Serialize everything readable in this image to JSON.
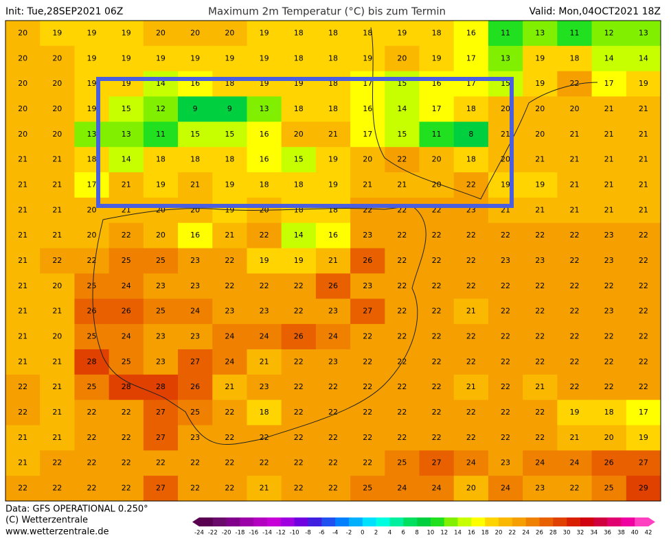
{
  "header": {
    "init": "Init: Tue,28SEP2021 06Z",
    "title": "Maximum 2m Temperatur (°C) bis zum Termin",
    "valid": "Valid: Mon,04OCT2021 18Z"
  },
  "footer": {
    "data": "Data: GFS OPERATIONAL 0.250°",
    "copyright": "(C) Wetterzentrale",
    "url": "www.wetterzentrale.de"
  },
  "map": {
    "rows": [
      [
        20,
        19,
        19,
        19,
        20,
        20,
        20,
        19,
        18,
        18,
        18,
        19,
        18,
        16,
        11,
        13,
        11,
        12,
        13
      ],
      [
        20,
        20,
        19,
        19,
        19,
        19,
        19,
        19,
        18,
        18,
        19,
        20,
        19,
        17,
        13,
        19,
        18,
        14,
        14
      ],
      [
        20,
        20,
        19,
        19,
        14,
        16,
        18,
        19,
        19,
        18,
        17,
        15,
        16,
        17,
        15,
        19,
        22,
        17,
        19
      ],
      [
        20,
        20,
        19,
        15,
        12,
        9,
        9,
        13,
        18,
        18,
        16,
        14,
        17,
        18,
        20,
        20,
        20,
        21,
        21
      ],
      [
        20,
        20,
        13,
        13,
        11,
        15,
        15,
        16,
        20,
        21,
        17,
        15,
        11,
        8,
        21,
        20,
        21,
        21,
        21
      ],
      [
        21,
        21,
        18,
        14,
        18,
        18,
        18,
        16,
        15,
        19,
        20,
        22,
        20,
        18,
        20,
        21,
        21,
        21,
        21
      ],
      [
        21,
        21,
        17,
        21,
        19,
        21,
        19,
        18,
        18,
        19,
        21,
        21,
        20,
        22,
        19,
        19,
        21,
        21,
        21
      ],
      [
        21,
        21,
        20,
        21,
        20,
        20,
        19,
        20,
        18,
        18,
        22,
        22,
        22,
        23,
        21,
        21,
        21,
        21,
        21
      ],
      [
        21,
        21,
        20,
        22,
        20,
        16,
        21,
        22,
        14,
        16,
        23,
        22,
        22,
        22,
        22,
        22,
        22,
        23,
        22
      ],
      [
        21,
        22,
        22,
        25,
        25,
        23,
        22,
        19,
        19,
        21,
        26,
        22,
        22,
        22,
        23,
        23,
        22,
        23,
        22
      ],
      [
        21,
        20,
        25,
        24,
        23,
        23,
        22,
        22,
        22,
        26,
        23,
        22,
        22,
        22,
        22,
        22,
        22,
        22,
        22
      ],
      [
        21,
        21,
        26,
        26,
        25,
        24,
        23,
        23,
        22,
        23,
        27,
        22,
        22,
        21,
        22,
        22,
        22,
        23,
        22
      ],
      [
        21,
        20,
        25,
        24,
        23,
        23,
        24,
        24,
        26,
        24,
        22,
        22,
        22,
        22,
        22,
        22,
        22,
        22,
        22
      ],
      [
        21,
        21,
        28,
        25,
        23,
        27,
        24,
        21,
        22,
        23,
        22,
        22,
        22,
        22,
        22,
        22,
        22,
        22,
        22
      ],
      [
        22,
        21,
        25,
        28,
        28,
        26,
        21,
        23,
        22,
        22,
        22,
        22,
        22,
        21,
        22,
        21,
        22,
        22,
        22
      ],
      [
        22,
        21,
        22,
        22,
        27,
        25,
        22,
        18,
        22,
        22,
        22,
        22,
        22,
        22,
        22,
        22,
        19,
        18,
        17
      ],
      [
        21,
        21,
        22,
        22,
        27,
        23,
        22,
        22,
        22,
        22,
        22,
        22,
        22,
        22,
        22,
        22,
        21,
        20,
        19
      ],
      [
        21,
        22,
        22,
        22,
        22,
        22,
        22,
        22,
        22,
        22,
        22,
        25,
        27,
        24,
        23,
        24,
        24,
        26,
        27
      ],
      [
        22,
        22,
        22,
        22,
        27,
        22,
        22,
        21,
        22,
        22,
        25,
        24,
        24,
        20,
        24,
        23,
        22,
        25,
        29
      ]
    ]
  },
  "colorbar": {
    "ticks": [
      -24,
      -22,
      -20,
      -18,
      -16,
      -14,
      -12,
      -10,
      -8,
      -6,
      -4,
      -2,
      0,
      2,
      4,
      6,
      8,
      10,
      12,
      14,
      16,
      18,
      20,
      22,
      24,
      26,
      28,
      30,
      32,
      34,
      36,
      38,
      40,
      42
    ],
    "colors": [
      "#5a0050",
      "#6a0a6a",
      "#80008c",
      "#9c00a8",
      "#b400c0",
      "#c800d8",
      "#a000e0",
      "#7000e0",
      "#4020e0",
      "#2050f0",
      "#0080ff",
      "#00b0ff",
      "#00e0ff",
      "#00ffe0",
      "#00f0a0",
      "#00e060",
      "#00d040",
      "#20e020",
      "#80f000",
      "#c8ff00",
      "#ffff00",
      "#ffd400",
      "#fbb800",
      "#f5a000",
      "#f08000",
      "#e86000",
      "#e04000",
      "#d82000",
      "#d00010",
      "#d00040",
      "#e00070",
      "#f000a0",
      "#ff40c0"
    ]
  }
}
